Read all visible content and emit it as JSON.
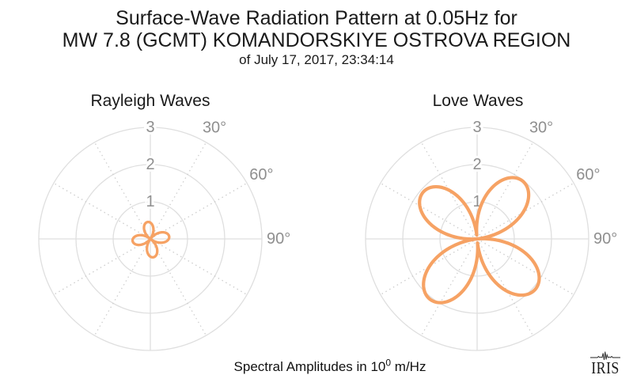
{
  "page": {
    "title_line1": "Surface-Wave Radiation Pattern at 0.05Hz for",
    "title_line2": "MW 7.8 (GCMT) KOMANDORSKIYE OSTROVA REGION",
    "title_line3": "of July 17, 2017, 23:34:14"
  },
  "caption": {
    "prefix": "Spectral Amplitudes in 10",
    "exponent": "0",
    "suffix": " m/Hz"
  },
  "footer": {
    "logo_text": "IRIS"
  },
  "colors": {
    "pattern_stroke": "#F6A264",
    "grid_line": "#DFDFDF",
    "grid_dotted": "#CFCFCF",
    "tick_label": "#8F8F8F",
    "title_text": "#1a1a1a"
  },
  "chart_data": [
    {
      "type": "polar-rose",
      "id": "rayleigh",
      "title": "Rayleigh Waves",
      "r_ticks": [
        1,
        2,
        3
      ],
      "r_tick_labels": [
        "1",
        "2",
        "3"
      ],
      "r_max": 3,
      "angle_label_values": [
        30,
        60,
        90
      ],
      "angle_labels": [
        "30°",
        "60°",
        "90°"
      ],
      "spoke_step_deg": 30,
      "lobes": [
        {
          "azimuth_deg": 351,
          "amplitude": 0.46
        },
        {
          "azimuth_deg": 83,
          "amplitude": 0.51
        },
        {
          "azimuth_deg": 171,
          "amplitude": 0.5
        },
        {
          "azimuth_deg": 264,
          "amplitude": 0.48
        }
      ],
      "stroke_width": 3.3
    },
    {
      "type": "polar-rose",
      "id": "love",
      "title": "Love Waves",
      "r_ticks": [
        1,
        2,
        3
      ],
      "r_tick_labels": [
        "1",
        "2",
        "3"
      ],
      "r_max": 3,
      "angle_label_values": [
        30,
        60,
        90
      ],
      "angle_labels": [
        "30°",
        "60°",
        "90°"
      ],
      "spoke_step_deg": 30,
      "lobes": [
        {
          "azimuth_deg": 38,
          "amplitude": 1.98
        },
        {
          "azimuth_deg": 131,
          "amplitude": 2.07
        },
        {
          "azimuth_deg": 218,
          "amplitude": 2.06
        },
        {
          "azimuth_deg": 311,
          "amplitude": 1.92
        }
      ],
      "stroke_width": 4.2
    }
  ]
}
